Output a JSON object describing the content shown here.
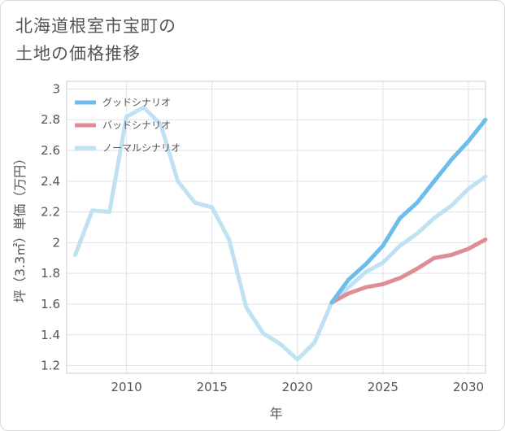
{
  "title": "北海道根室市宝町の\n土地の価格推移",
  "chart_data": {
    "type": "line",
    "xlabel": "年",
    "ylabel": "坪（3.3㎡）単価（万円）",
    "xlim": [
      2006.5,
      2031
    ],
    "ylim": [
      1.15,
      3.05
    ],
    "xticks": [
      2010,
      2015,
      2020,
      2025,
      2030
    ],
    "yticks": [
      1.2,
      1.4,
      1.6,
      1.8,
      2,
      2.2,
      2.4,
      2.6,
      2.8,
      3
    ],
    "ytick_labels": [
      "1.2",
      "1.4",
      "1.6",
      "1.8",
      "2",
      "2.2",
      "2.4",
      "2.6",
      "2.8",
      "3"
    ],
    "grid": true,
    "legend": "top-left",
    "series": [
      {
        "name": "グッドシナリオ",
        "color": "#6cbcec",
        "x": [
          2022,
          2023,
          2024,
          2025,
          2026,
          2027,
          2028,
          2029,
          2030,
          2031
        ],
        "y": [
          1.61,
          1.76,
          1.86,
          1.98,
          2.16,
          2.26,
          2.4,
          2.54,
          2.66,
          2.8
        ]
      },
      {
        "name": "バッドシナリオ",
        "color": "#e08c94",
        "x": [
          2022,
          2023,
          2024,
          2025,
          2026,
          2027,
          2028,
          2029,
          2030,
          2031
        ],
        "y": [
          1.61,
          1.67,
          1.71,
          1.73,
          1.77,
          1.83,
          1.9,
          1.92,
          1.96,
          2.02
        ]
      },
      {
        "name": "ノーマルシナリオ",
        "color": "#bfe1f1",
        "x": [
          2007,
          2008,
          2009,
          2010,
          2011,
          2012,
          2013,
          2014,
          2015,
          2016,
          2017,
          2018,
          2019,
          2020,
          2021,
          2022,
          2023,
          2024,
          2025,
          2026,
          2027,
          2028,
          2029,
          2030,
          2031
        ],
        "y": [
          1.92,
          2.21,
          2.2,
          2.82,
          2.88,
          2.77,
          2.4,
          2.26,
          2.23,
          2.02,
          1.58,
          1.41,
          1.34,
          1.24,
          1.35,
          1.61,
          1.71,
          1.81,
          1.87,
          1.98,
          2.06,
          2.16,
          2.24,
          2.35,
          2.43
        ]
      }
    ]
  }
}
